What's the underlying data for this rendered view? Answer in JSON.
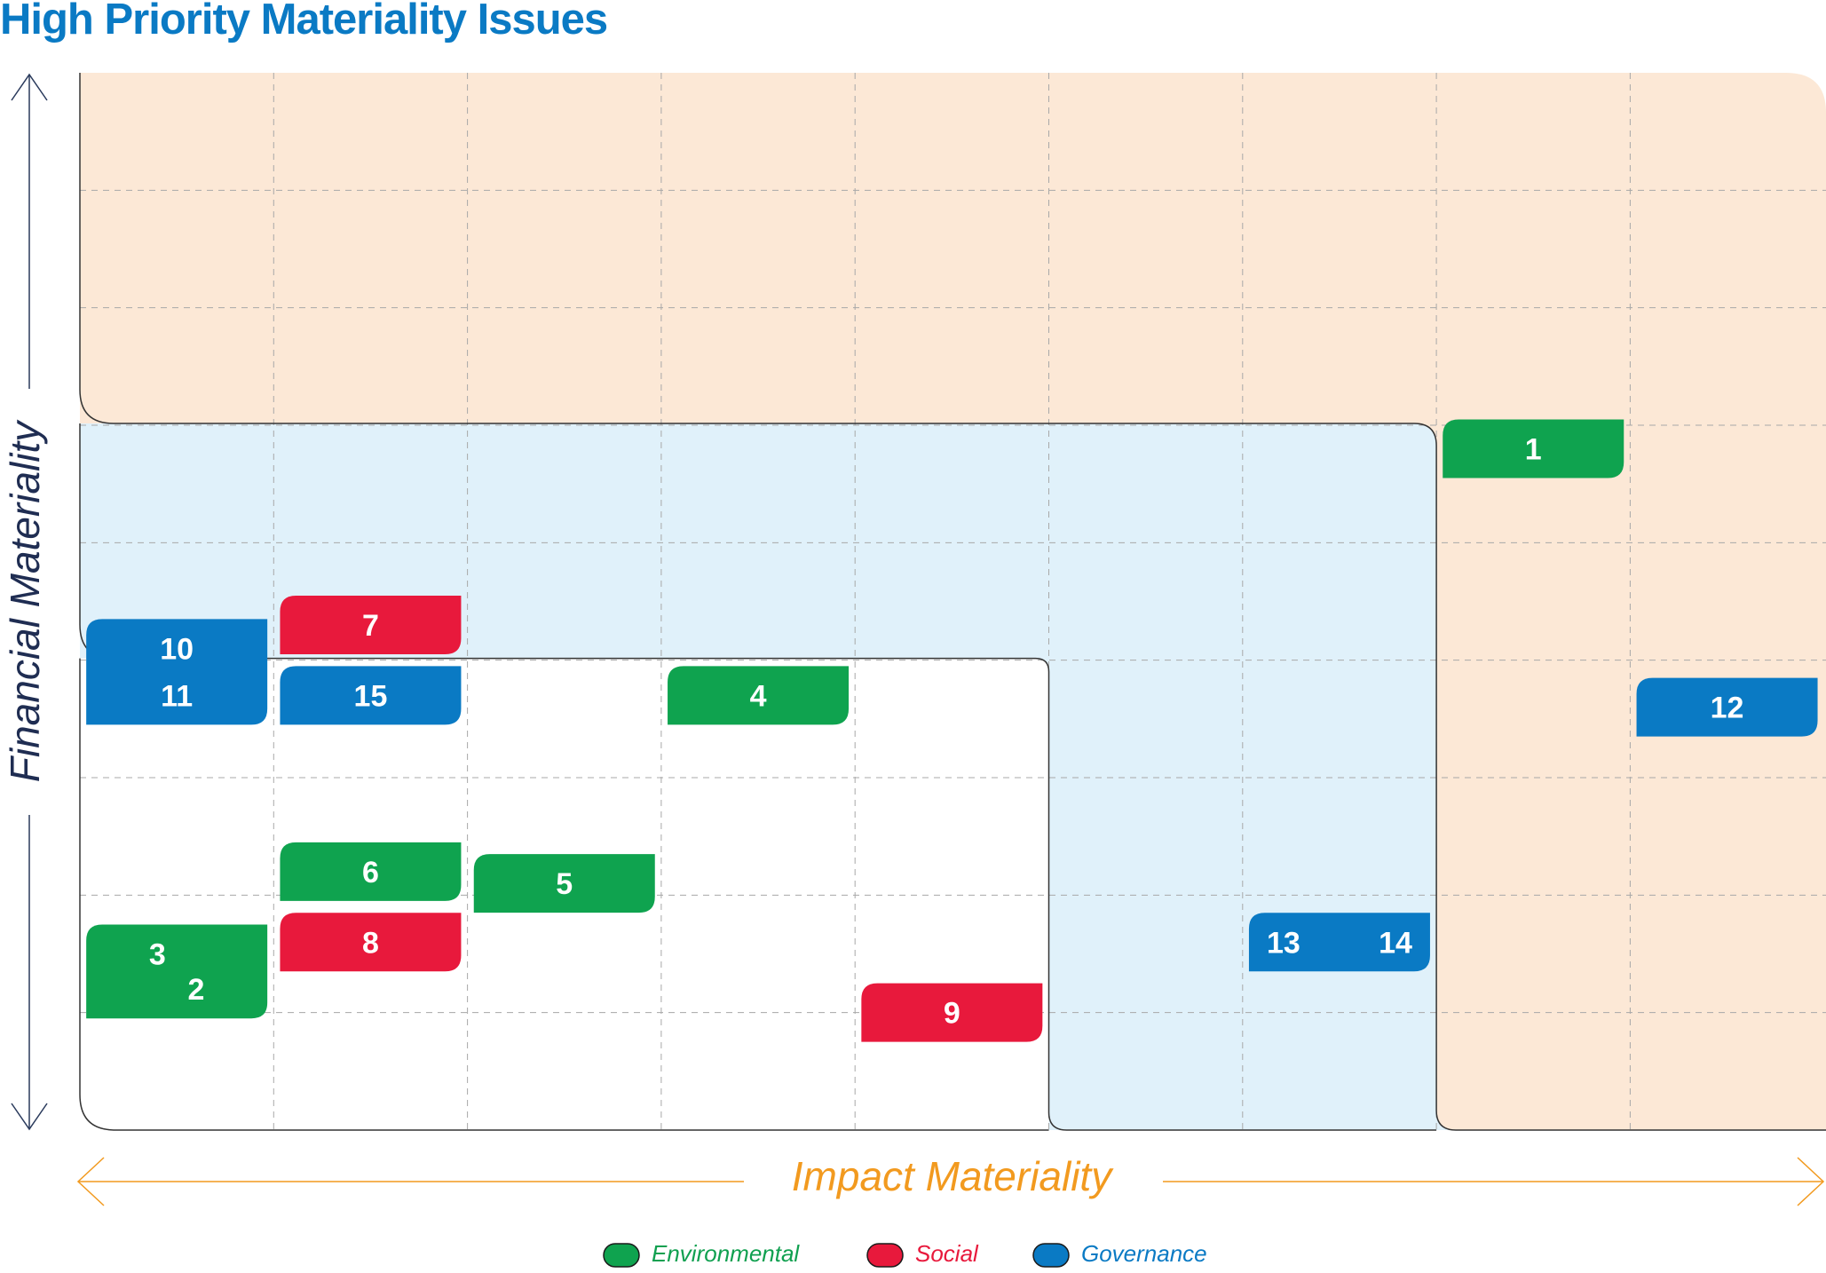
{
  "title": "High Priority Materiality Issues",
  "chart_data": {
    "type": "scatter",
    "title": "High Priority Materiality Issues",
    "xlabel": "Impact Materiality",
    "ylabel": "Financial Materiality",
    "grid": true,
    "grid_columns": 9,
    "grid_rows": 9,
    "zones": [
      {
        "name": "outer",
        "color": "#fce8d6"
      },
      {
        "name": "middle",
        "color": "#e0f1fa"
      },
      {
        "name": "inner",
        "color": "#ffffff"
      }
    ],
    "legend_position": "bottom-center",
    "legend": [
      {
        "label": "Environmental",
        "color": "#0fa34f",
        "text_color": "#10a050"
      },
      {
        "label": "Social",
        "color": "#e8193c",
        "text_color": "#e8193c"
      },
      {
        "label": "Governance",
        "color": "#0a7ac4",
        "text_color": "#0a7ac4"
      }
    ],
    "issues": [
      {
        "id": "1",
        "category": "Environmental",
        "impact": 7.5,
        "financial": 5.8
      },
      {
        "id": "2",
        "category": "Environmental",
        "impact": 0.6,
        "financial": 1.2
      },
      {
        "id": "3",
        "category": "Environmental",
        "impact": 0.4,
        "financial": 1.5
      },
      {
        "id": "4",
        "category": "Environmental",
        "impact": 3.5,
        "financial": 3.7
      },
      {
        "id": "5",
        "category": "Environmental",
        "impact": 2.5,
        "financial": 2.1
      },
      {
        "id": "6",
        "category": "Environmental",
        "impact": 1.5,
        "financial": 2.2
      },
      {
        "id": "7",
        "category": "Social",
        "impact": 1.5,
        "financial": 4.3
      },
      {
        "id": "8",
        "category": "Social",
        "impact": 1.5,
        "financial": 1.6
      },
      {
        "id": "9",
        "category": "Social",
        "impact": 4.5,
        "financial": 1.0
      },
      {
        "id": "10",
        "category": "Governance",
        "impact": 0.5,
        "financial": 4.1
      },
      {
        "id": "11",
        "category": "Governance",
        "impact": 0.5,
        "financial": 3.7
      },
      {
        "id": "12",
        "category": "Governance",
        "impact": 8.5,
        "financial": 3.6
      },
      {
        "id": "13",
        "category": "Governance",
        "impact": 6.3,
        "financial": 1.6
      },
      {
        "id": "14",
        "category": "Governance",
        "impact": 6.7,
        "financial": 1.6
      },
      {
        "id": "15",
        "category": "Governance",
        "impact": 1.5,
        "financial": 3.7
      }
    ]
  }
}
